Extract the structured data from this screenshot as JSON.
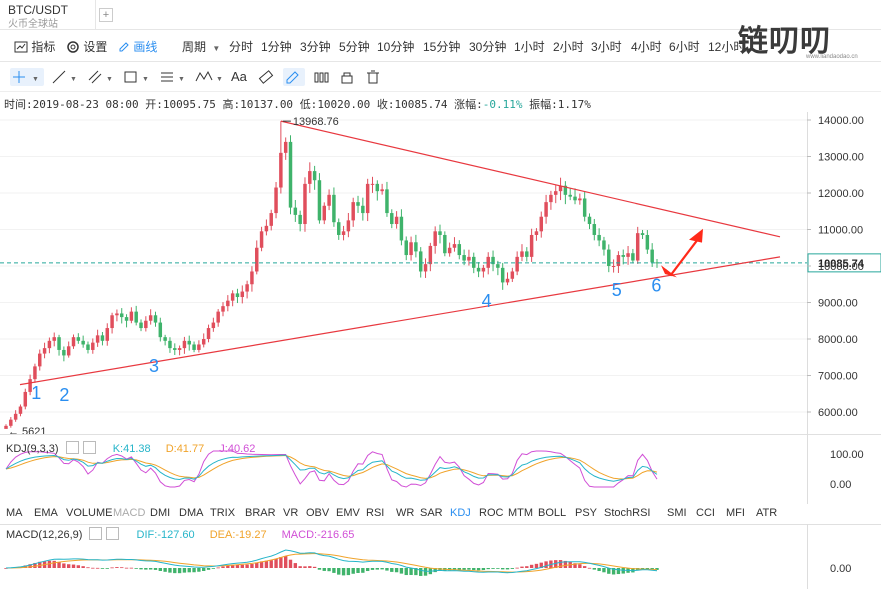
{
  "tab": {
    "title": "BTC/USDT",
    "subtitle": "火币全球站",
    "add": "+"
  },
  "toolbar": {
    "indicators": "指标",
    "settings": "设置",
    "draw": "画线",
    "period": "周期",
    "periods": [
      "分时",
      "1分钟",
      "3分钟",
      "5分钟",
      "10分钟",
      "15分钟",
      "30分钟",
      "1小时",
      "2小时",
      "3小时",
      "4小时",
      "6小时",
      "12小时"
    ]
  },
  "drawtools": {
    "text_tool": "Aa"
  },
  "logo": {
    "text": "链叨叨",
    "url": "www.liandaodao.cn"
  },
  "info": {
    "time_label": "时间:",
    "time": "2019-08-23 08:00",
    "open_label": "开:",
    "open": "10095.75",
    "high_label": "高:",
    "high": "10137.00",
    "low_label": "低:",
    "low": "10020.00",
    "close_label": "收:",
    "close": "10085.74",
    "change_label": "涨幅:",
    "change": "-0.11%",
    "amp_label": "振幅:",
    "amp": "1.17%"
  },
  "chart_data": [
    {
      "type": "candlestick",
      "title": "BTC/USDT",
      "ylim": [
        5300,
        14600
      ],
      "yticks": [
        "14000.00",
        "13000.00",
        "12000.00",
        "11000.00",
        "10000.00",
        "9000.00",
        "8000.00",
        "7000.00",
        "6000.00"
      ],
      "last_price": "10085.74",
      "last_price_value": 10085.74,
      "max_label": "13968.76",
      "min_label": "5621",
      "colors": {
        "up": "#e04e5c",
        "down": "#3fb36b",
        "trendline": "#e8383f",
        "arrow": "#ff2a1a",
        "wave": "#2a8ef0",
        "lastline": "#26a69a"
      },
      "annotations": {
        "wave_points": [
          "1",
          "2",
          "3",
          "4",
          "5",
          "6"
        ],
        "trend": "symmetrical triangle, upward breakout arrow"
      },
      "closes": [
        5621,
        5790,
        5950,
        6150,
        6550,
        6900,
        7250,
        7600,
        7750,
        7950,
        8050,
        7700,
        7550,
        7800,
        8050,
        7950,
        7850,
        7700,
        7900,
        8100,
        7950,
        8300,
        8650,
        8700,
        8600,
        8500,
        8750,
        8450,
        8300,
        8500,
        8650,
        8450,
        8050,
        7950,
        7750,
        7700,
        7750,
        7950,
        7850,
        7700,
        7850,
        8000,
        8300,
        8450,
        8750,
        8900,
        9050,
        9250,
        9150,
        9300,
        9500,
        9850,
        10500,
        10950,
        11100,
        11450,
        12150,
        13100,
        13400,
        11600,
        11400,
        11150,
        12250,
        12600,
        12350,
        11250,
        11650,
        11950,
        11200,
        10850,
        10950,
        11250,
        11750,
        11650,
        11450,
        12250,
        12250,
        12050,
        12100,
        11450,
        11150,
        11350,
        10700,
        10300,
        10650,
        10400,
        9850,
        10050,
        10550,
        10950,
        10850,
        10350,
        10500,
        10600,
        10300,
        10150,
        10250,
        9950,
        9850,
        9950,
        10250,
        10050,
        9950,
        9550,
        9650,
        9850,
        10250,
        10400,
        10250,
        10850,
        10950,
        11350,
        11750,
        11950,
        12050,
        12200,
        11950,
        11900,
        11800,
        11850,
        11350,
        11150,
        10850,
        10700,
        10450,
        10000,
        10000,
        10300,
        10250,
        10350,
        10150,
        10900,
        10850,
        10450,
        10100,
        10085.74
      ]
    },
    {
      "type": "line",
      "title": "KDJ(9,3,3)",
      "values_label": {
        "k": "K:41.38",
        "d": "D:41.77",
        "j": "J:40.62"
      },
      "ylim": [
        -20,
        120
      ],
      "yticks": [
        "100.00",
        "0.00"
      ],
      "series": [
        {
          "name": "K",
          "color": "#26b5c9"
        },
        {
          "name": "D",
          "color": "#f0a32a"
        },
        {
          "name": "J",
          "color": "#d14fd6"
        }
      ]
    },
    {
      "type": "bar",
      "title": "MACD(12,26,9)",
      "values_label": {
        "dif": "DIF:-127.60",
        "dea": "DEA:-19.27",
        "macd": "MACD:-216.65"
      },
      "yticks": [
        "0.00"
      ],
      "series": [
        {
          "name": "DIF",
          "color": "#26b5c9"
        },
        {
          "name": "DEA",
          "color": "#f0a32a"
        },
        {
          "name": "MACD",
          "color": "#d14fd6"
        }
      ]
    }
  ],
  "indicator_tabs": [
    "MA",
    "EMA",
    "VOLUME",
    "MACD",
    "DMI",
    "DMA",
    "TRIX",
    "BRAR",
    "VR",
    "OBV",
    "EMV",
    "RSI",
    "WR",
    "SAR",
    "KDJ",
    "ROC",
    "MTM",
    "BOLL",
    "PSY",
    "StochRSI",
    "SMI",
    "CCI",
    "MFI",
    "ATR"
  ],
  "indicator_tabs_active": "KDJ",
  "indicator_tabs_grey": "MACD"
}
